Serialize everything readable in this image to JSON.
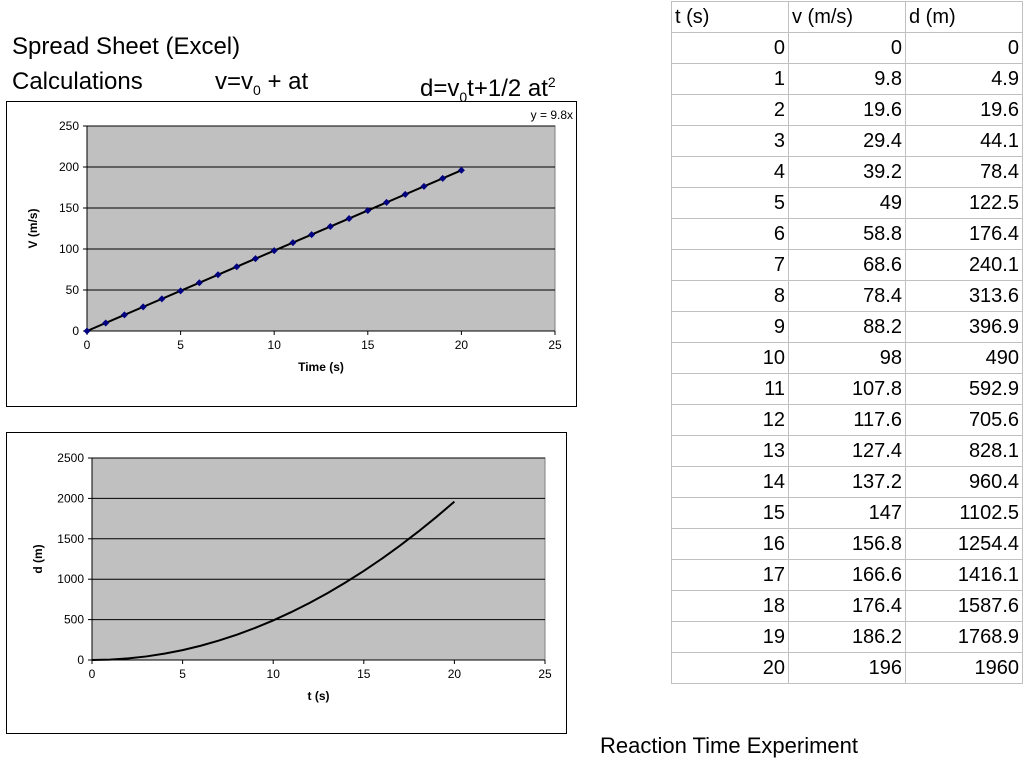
{
  "heading": {
    "line1": "Spread Sheet (Excel)",
    "line2": "Calculations",
    "eq_v": {
      "lhs": "v=v",
      "sub": "0",
      "rhs": " + at"
    },
    "eq_d": {
      "lhs": "d=v",
      "sub": "0",
      "mid": "t+1/2 at",
      "sup": "2"
    }
  },
  "table": {
    "headers": [
      "t (s)",
      "v (m/s)",
      "d (m)"
    ],
    "rows": [
      [
        "0",
        "0",
        "0"
      ],
      [
        "1",
        "9.8",
        "4.9"
      ],
      [
        "2",
        "19.6",
        "19.6"
      ],
      [
        "3",
        "29.4",
        "44.1"
      ],
      [
        "4",
        "39.2",
        "78.4"
      ],
      [
        "5",
        "49",
        "122.5"
      ],
      [
        "6",
        "58.8",
        "176.4"
      ],
      [
        "7",
        "68.6",
        "240.1"
      ],
      [
        "8",
        "78.4",
        "313.6"
      ],
      [
        "9",
        "88.2",
        "396.9"
      ],
      [
        "10",
        "98",
        "490"
      ],
      [
        "11",
        "107.8",
        "592.9"
      ],
      [
        "12",
        "117.6",
        "705.6"
      ],
      [
        "13",
        "127.4",
        "828.1"
      ],
      [
        "14",
        "137.2",
        "960.4"
      ],
      [
        "15",
        "147",
        "1102.5"
      ],
      [
        "16",
        "156.8",
        "1254.4"
      ],
      [
        "17",
        "166.6",
        "1416.1"
      ],
      [
        "18",
        "176.4",
        "1587.6"
      ],
      [
        "19",
        "186.2",
        "1768.9"
      ],
      [
        "20",
        "196",
        "1960"
      ]
    ]
  },
  "footer": "Reaction Time Experiment",
  "chart_data": [
    {
      "type": "scatter",
      "trendline": "y = 9.8x",
      "xlabel": "Time (s)",
      "ylabel": "V (m/s)",
      "xlim": [
        0,
        25
      ],
      "ylim": [
        0,
        250
      ],
      "xticks": [
        0,
        5,
        10,
        15,
        20,
        25
      ],
      "yticks": [
        0,
        50,
        100,
        150,
        200,
        250
      ],
      "grid": "horizontal",
      "x": [
        0,
        1,
        2,
        3,
        4,
        5,
        6,
        7,
        8,
        9,
        10,
        11,
        12,
        13,
        14,
        15,
        16,
        17,
        18,
        19,
        20
      ],
      "y": [
        0,
        9.8,
        19.6,
        29.4,
        39.2,
        49,
        58.8,
        68.6,
        78.4,
        88.2,
        98,
        107.8,
        117.6,
        127.4,
        137.2,
        147,
        156.8,
        166.6,
        176.4,
        186.2,
        196
      ],
      "colors": {
        "plot_bg": "#c0c0c0",
        "marker": "#000080",
        "line": "#000000"
      }
    },
    {
      "type": "line",
      "xlabel": "t (s)",
      "ylabel": "d (m)",
      "xlim": [
        0,
        25
      ],
      "ylim": [
        0,
        2500
      ],
      "xticks": [
        0,
        5,
        10,
        15,
        20,
        25
      ],
      "yticks": [
        0,
        500,
        1000,
        1500,
        2000,
        2500
      ],
      "grid": "horizontal",
      "x": [
        0,
        1,
        2,
        3,
        4,
        5,
        6,
        7,
        8,
        9,
        10,
        11,
        12,
        13,
        14,
        15,
        16,
        17,
        18,
        19,
        20
      ],
      "y": [
        0,
        4.9,
        19.6,
        44.1,
        78.4,
        122.5,
        176.4,
        240.1,
        313.6,
        396.9,
        490,
        592.9,
        705.6,
        828.1,
        960.4,
        1102.5,
        1254.4,
        1416.1,
        1587.6,
        1768.9,
        1960
      ],
      "colors": {
        "plot_bg": "#c0c0c0",
        "line": "#000000"
      }
    }
  ]
}
